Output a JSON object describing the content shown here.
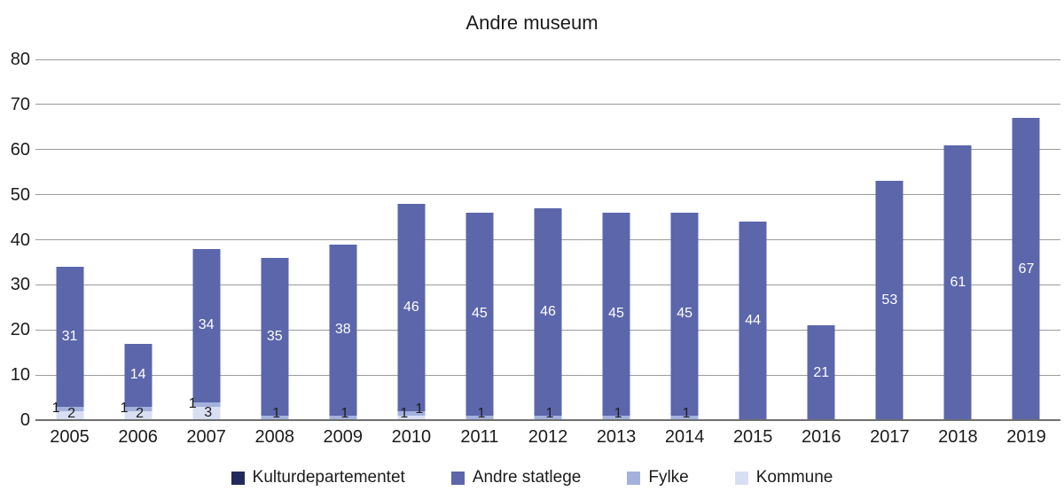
{
  "palette": {
    "background": "#ffffff",
    "text": "#1c1c1c",
    "gridline": "#9a9a9a",
    "axis": "#6f6f6f",
    "bar_value_text": "#ffffff"
  },
  "chart_data": {
    "type": "bar",
    "stacked": true,
    "title": "Andre museum",
    "categories": [
      "2005",
      "2006",
      "2007",
      "2008",
      "2009",
      "2010",
      "2011",
      "2012",
      "2013",
      "2014",
      "2015",
      "2016",
      "2017",
      "2018",
      "2019"
    ],
    "series": [
      {
        "name": "Kulturdepartementet",
        "color": "#232a5b",
        "values": [
          0,
          0,
          0,
          0,
          0,
          0,
          0,
          0,
          0,
          0,
          0,
          0,
          0,
          0,
          0
        ]
      },
      {
        "name": "Andre statlege",
        "color": "#5b66ab",
        "values": [
          31,
          14,
          34,
          35,
          38,
          46,
          45,
          46,
          45,
          45,
          44,
          21,
          53,
          61,
          67
        ],
        "value_labels_inside": true
      },
      {
        "name": "Fylke",
        "color": "#a3b1dd",
        "values": [
          1,
          1,
          1,
          1,
          1,
          1,
          1,
          1,
          1,
          1,
          0,
          0,
          0,
          0,
          0
        ],
        "label_align": [
          "edge",
          "edge",
          "edge",
          "center",
          "center",
          "right",
          "center",
          "center",
          "center",
          "center",
          null,
          null,
          null,
          null,
          null
        ]
      },
      {
        "name": "Kommune",
        "color": "#d9dff2",
        "values": [
          2,
          2,
          3,
          0,
          0,
          1,
          0,
          0,
          0,
          0,
          0,
          0,
          0,
          0,
          0
        ],
        "label_align": [
          "center",
          "center",
          "center",
          null,
          null,
          "left",
          null,
          null,
          null,
          null,
          null,
          null,
          null,
          null,
          null
        ]
      }
    ],
    "stack_order_bottom_up": [
      "Kommune",
      "Fylke",
      "Andre statlege",
      "Kulturdepartementet"
    ],
    "ylim": [
      0,
      80
    ],
    "yticks": [
      0,
      10,
      20,
      30,
      40,
      50,
      60,
      70,
      80
    ],
    "grid": true,
    "legend_position": "bottom"
  }
}
